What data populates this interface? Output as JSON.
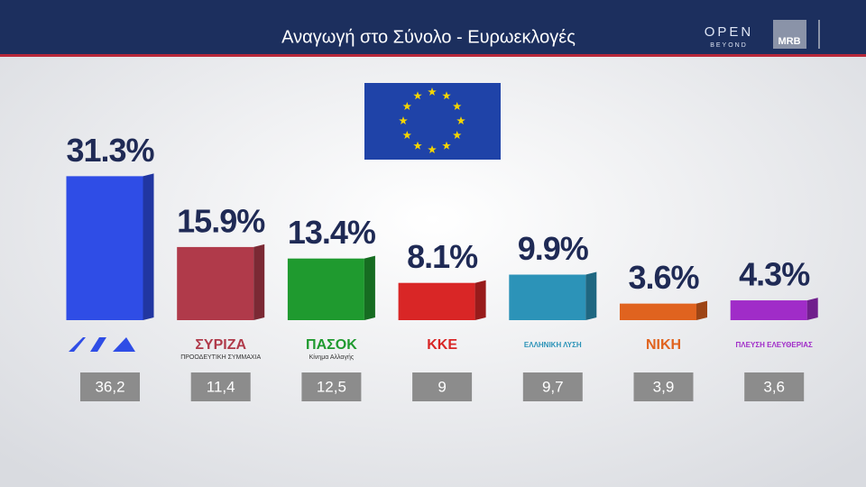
{
  "broadcaster": "OPEN",
  "broadcaster_tagline": "BEYOND",
  "pollster": "MRB",
  "chart_data": {
    "type": "bar",
    "title": "Αναγωγή στο Σύνολο - Ευρωεκλογές",
    "categories": [
      null,
      "ΣΥΡΙΖΑ",
      "ΠΑΣΟΚ",
      "ΚΚΕ",
      "ΕΛΛΗΝΙΚΗ ΛΥΣΗ",
      "ΝΙΚΗ",
      "ΠΛΕΥΣΗ ΕΛΕΥΘΕΡΙΑΣ"
    ],
    "category_sublabels": [
      null,
      "ΠΡΟΟΔΕΥΤΙΚΗ ΣΥΜΜΑΧΙΑ",
      "Κίνημα Αλλαγής",
      null,
      null,
      null,
      null
    ],
    "values": [
      31.3,
      15.9,
      13.4,
      8.1,
      9.9,
      3.6,
      4.3
    ],
    "value_labels": [
      "31.3%",
      "15.9%",
      "13.4%",
      "8.1%",
      "9.9%",
      "3.6%",
      "4.3%"
    ],
    "colors": [
      "#2f4de6",
      "#b03a4a",
      "#1f9a2f",
      "#d92626",
      "#2c93b8",
      "#e0631f",
      "#a02cc8"
    ],
    "previous": {
      "values": [
        36.2,
        11.4,
        12.5,
        9,
        9.7,
        3.9,
        3.6
      ],
      "value_labels": [
        "36,2",
        "11,4",
        "12,5",
        "9",
        "9,7",
        "3,9",
        "3,6"
      ]
    }
  }
}
